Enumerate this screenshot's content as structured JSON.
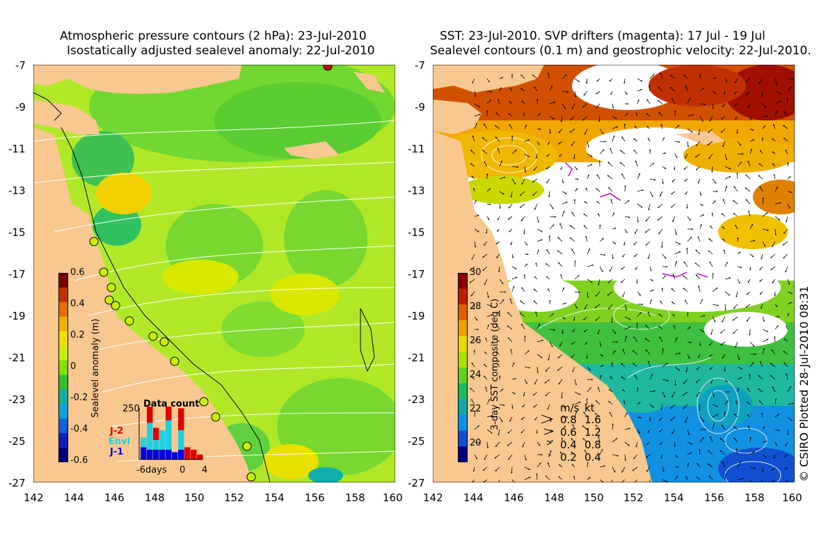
{
  "left_panel": {
    "title_line1": "Atmospheric pressure contours (2 hPa): 23-Jul-2010",
    "title_line2": "Isostatically adjusted sealevel anomaly: 22-Jul-2010",
    "x_ticks": [
      "142",
      "144",
      "146",
      "148",
      "150",
      "152",
      "154",
      "156",
      "158",
      "160"
    ],
    "y_ticks": [
      "-7",
      "-9",
      "-11",
      "-13",
      "-15",
      "-17",
      "-19",
      "-21",
      "-23",
      "-25",
      "-27"
    ],
    "colorbar": {
      "label": "Sealevel anomaly (m)",
      "ticks": [
        "0.6",
        "0.4",
        "0.2",
        "0",
        "-0.2",
        "-0.4",
        "-0.6"
      ],
      "colors": [
        "#7a0000",
        "#c03000",
        "#e07000",
        "#f0b000",
        "#f0e000",
        "#c8f000",
        "#80e000",
        "#30c030",
        "#10b0a0",
        "#10a0e0",
        "#1060e0",
        "#1020c0",
        "#000080"
      ]
    },
    "inset": {
      "title": "Data count",
      "y_label": "250",
      "x_ticks": [
        "-6days",
        "0",
        "4"
      ],
      "legend": [
        {
          "label": "J-2",
          "color": "#e00000"
        },
        {
          "label": "Envi",
          "color": "#20d0e0"
        },
        {
          "label": "J-1",
          "color": "#0000e0"
        }
      ],
      "bars": [
        {
          "day": -6,
          "j1": 0.25,
          "envi": 0.2,
          "j2": 0.0
        },
        {
          "day": -5,
          "j1": 0.2,
          "envi": 0.55,
          "j2": 0.45
        },
        {
          "day": -4,
          "j1": 0.2,
          "envi": 0.2,
          "j2": 0.25
        },
        {
          "day": -3,
          "j1": 0.2,
          "envi": 0.4,
          "j2": 0.0
        },
        {
          "day": -2,
          "j1": 0.2,
          "envi": 0.6,
          "j2": 0.4
        },
        {
          "day": -1,
          "j1": 0.15,
          "envi": 0.0,
          "j2": 0.0
        },
        {
          "day": 0,
          "j1": 0.2,
          "envi": 0.4,
          "j2": 0.45
        },
        {
          "day": 1,
          "j1": 0.0,
          "envi": 0.0,
          "j2": 0.25
        },
        {
          "day": 2,
          "j1": 0.0,
          "envi": 0.0,
          "j2": 0.2
        },
        {
          "day": 3,
          "j1": 0.0,
          "envi": 0.0,
          "j2": 0.1
        }
      ]
    }
  },
  "right_panel": {
    "title_line1": "SST: 23-Jul-2010. SVP drifters (magenta): 17 Jul - 19 Jul",
    "title_line2": "Sealevel contours (0.1 m) and geostrophic velocity: 22-Jul-2010.",
    "x_ticks": [
      "142",
      "144",
      "146",
      "148",
      "150",
      "152",
      "154",
      "156",
      "158",
      "160"
    ],
    "y_ticks": [
      "-7",
      "-9",
      "-11",
      "-13",
      "-15",
      "-17",
      "-19",
      "-21",
      "-23",
      "-25",
      "-27"
    ],
    "colorbar": {
      "label": "3-day SST composite (deg C)",
      "ticks": [
        "30",
        "28",
        "26",
        "24",
        "22",
        "20"
      ],
      "colors": [
        "#8a0000",
        "#c02000",
        "#e06000",
        "#f0a000",
        "#e8d800",
        "#b0e000",
        "#60d020",
        "#20b860",
        "#10a8a8",
        "#1090e0",
        "#1050d0",
        "#000080"
      ]
    },
    "velocity_key": {
      "header_ms": "m/s",
      "header_kt": "kt",
      "rows": [
        {
          "ms": "0.8",
          "kt": "1.6"
        },
        {
          "ms": "0.6",
          "kt": "1.2"
        },
        {
          "ms": "0.4",
          "kt": "0.8"
        },
        {
          "ms": "0.2",
          "kt": "0.4"
        }
      ]
    }
  },
  "credit": "© CSIRO Plotted 28-Jul-2010 08:31",
  "colors": {
    "land": "#f8c890",
    "left_ocean_base": "#b0e828",
    "right_cloud": "#ffffff"
  }
}
